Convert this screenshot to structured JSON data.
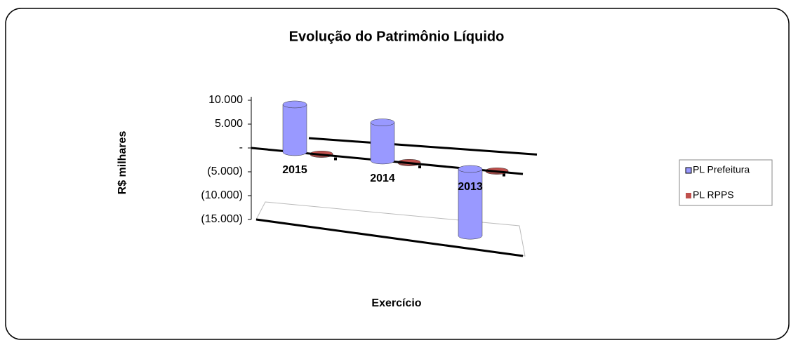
{
  "chart_data": {
    "type": "bar",
    "title": "Evolução do Patrimônio Líquido",
    "ylabel": "R$ milhares",
    "xlabel": "Exercício",
    "categories": [
      "2015",
      "2014",
      "2013"
    ],
    "series": [
      {
        "name": "PL Prefeitura",
        "color": "#9999ff",
        "values": [
          10000,
          8000,
          -14000
        ]
      },
      {
        "name": "PL RPPS",
        "color": "#c0504d",
        "values": [
          200,
          200,
          200
        ]
      }
    ],
    "ylim": [
      -15000,
      10000
    ],
    "yticks": [
      {
        "value": -15000,
        "label": "(15.000)"
      },
      {
        "value": -10000,
        "label": "(10.000)"
      },
      {
        "value": -5000,
        "label": "(5.000)"
      },
      {
        "value": 0,
        "label": "-"
      },
      {
        "value": 5000,
        "label": "5.000"
      },
      {
        "value": 10000,
        "label": "10.000"
      }
    ],
    "legend": "right"
  }
}
